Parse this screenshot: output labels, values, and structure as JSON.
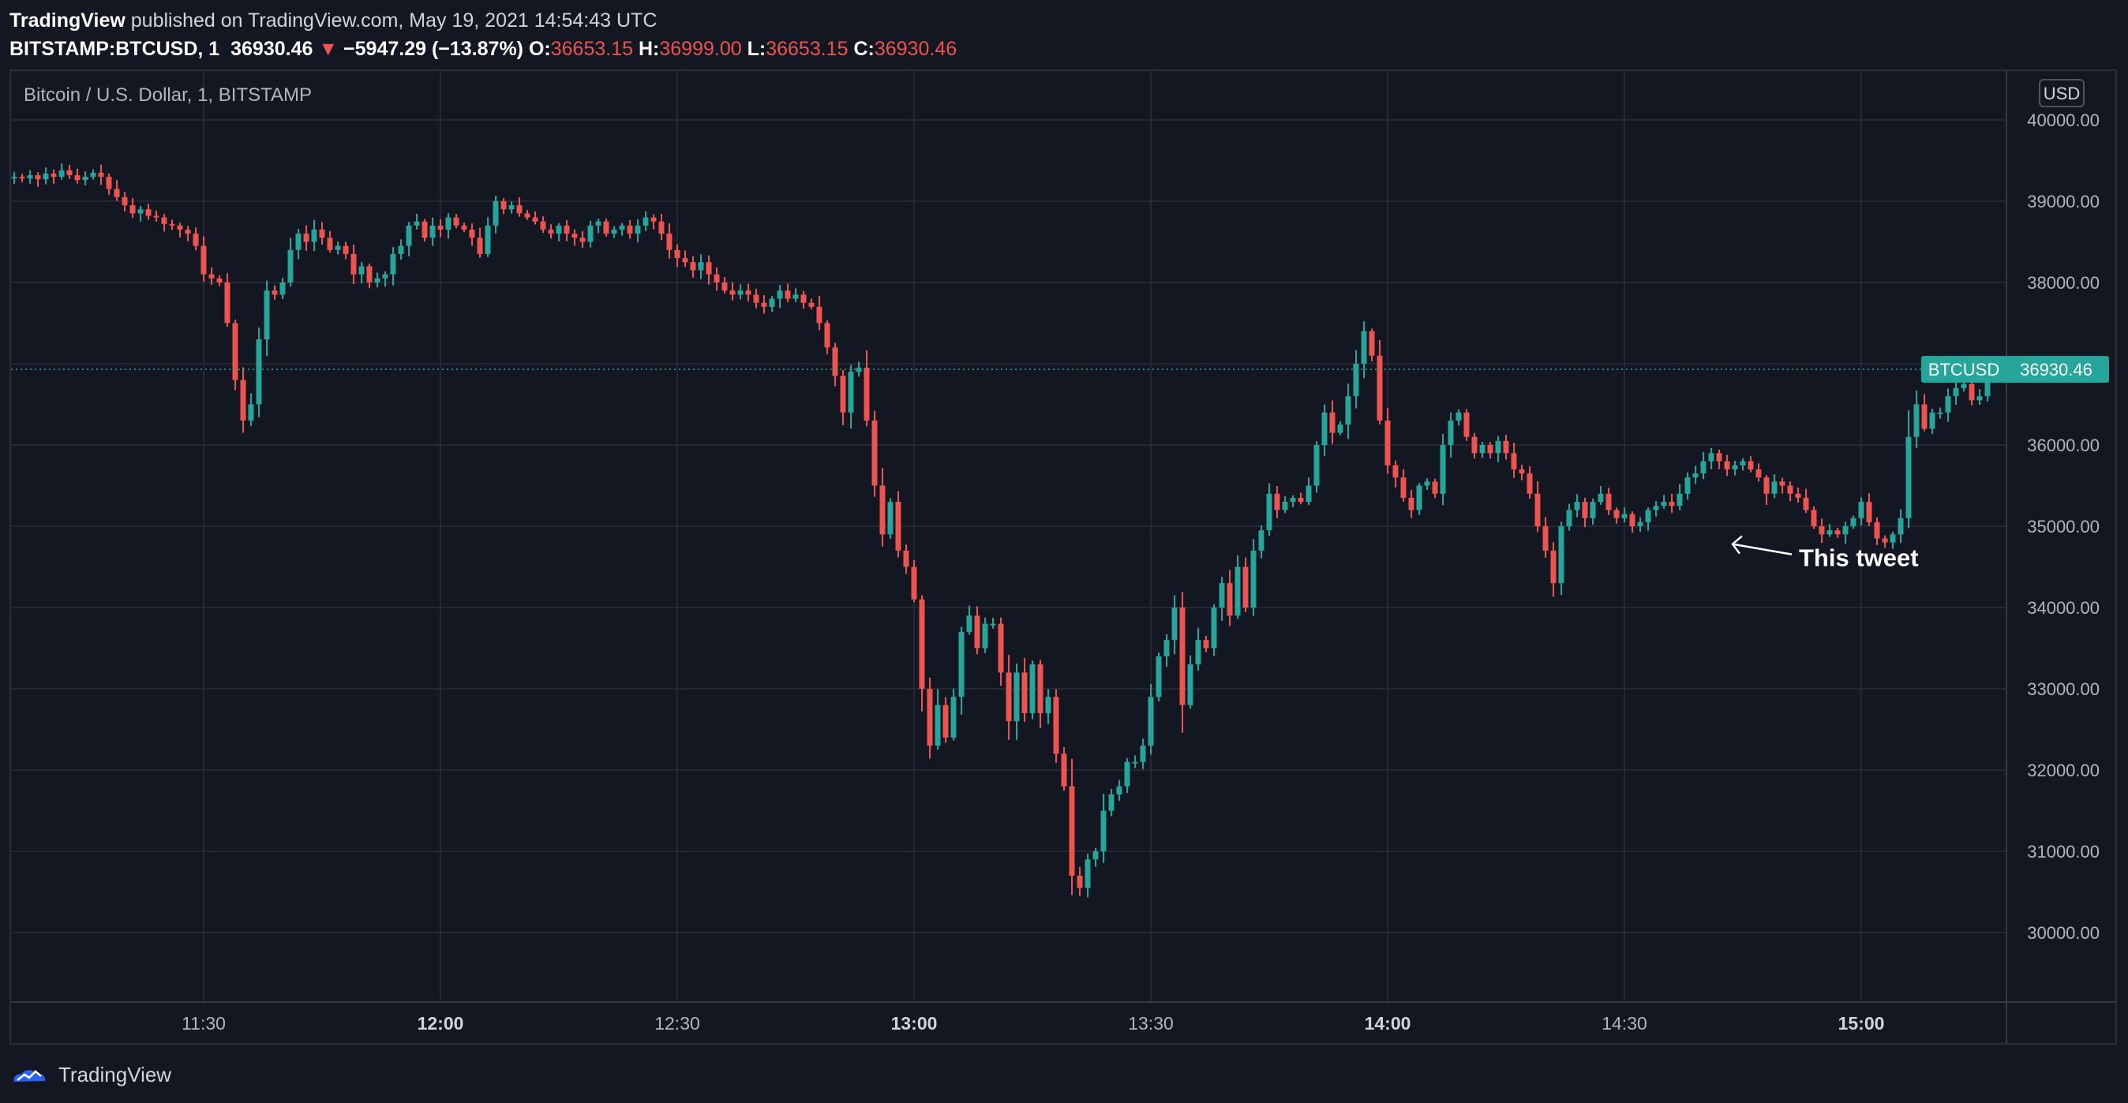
{
  "header": {
    "publisher": "TradingView",
    "published_text": "published on TradingView.com, May 19, 2021 14:54:43 UTC",
    "symbol": "BITSTAMP:BTCUSD, 1",
    "last": "36930.46",
    "change_arrow": "▼",
    "change": "−5947.29 (−13.87%)",
    "o_label": "O:",
    "o_value": "36653.15",
    "h_label": "H:",
    "h_value": "36999.00",
    "l_label": "L:",
    "l_value": "36653.15",
    "c_label": "C:",
    "c_value": "36930.46"
  },
  "chart_data": {
    "type": "candlestick",
    "title": "Bitcoin / U.S. Dollar, 1, BITSTAMP",
    "currency": "USD",
    "price_label_symbol": "BTCUSD",
    "price_label_value": "36930.46",
    "last_price": 36930.46,
    "y_ticks": [
      "40000.00",
      "39000.00",
      "38000.00",
      "37000.00",
      "36000.00",
      "35000.00",
      "34000.00",
      "33000.00",
      "32000.00",
      "31000.00",
      "30000.00"
    ],
    "x_ticks": [
      "11:30",
      "12:00",
      "12:30",
      "13:00",
      "13:30",
      "14:00",
      "14:30",
      "15:00"
    ],
    "x_ticks_bold": [
      "12:00",
      "13:00",
      "14:00",
      "15:00"
    ],
    "ylim": [
      29100,
      40500
    ],
    "xlim": [
      "11:06",
      "15:19"
    ],
    "grid": true,
    "annotation": {
      "text": "This tweet",
      "time": "14:43",
      "price": 34800
    },
    "colors": {
      "up": "#26a69a",
      "down": "#ef5350",
      "grid": "#2a2e39",
      "background": "#131722"
    },
    "candles_close": [
      39300,
      39280,
      39320,
      39270,
      39340,
      39300,
      39380,
      39320,
      39260,
      39300,
      39350,
      39300,
      39150,
      39050,
      38950,
      38850,
      38900,
      38820,
      38800,
      38720,
      38700,
      38650,
      38600,
      38450,
      38100,
      38050,
      38000,
      37500,
      36800,
      36300,
      36500,
      37300,
      37900,
      37850,
      38000,
      38400,
      38600,
      38500,
      38650,
      38550,
      38400,
      38450,
      38350,
      38100,
      38200,
      38000,
      38050,
      38100,
      38350,
      38450,
      38700,
      38750,
      38550,
      38700,
      38650,
      38800,
      38700,
      38650,
      38550,
      38350,
      38700,
      39000,
      38900,
      38950,
      38850,
      38800,
      38750,
      38650,
      38600,
      38700,
      38600,
      38550,
      38500,
      38700,
      38750,
      38600,
      38650,
      38700,
      38600,
      38700,
      38800,
      38750,
      38600,
      38400,
      38300,
      38250,
      38150,
      38250,
      38100,
      38000,
      37900,
      37850,
      37900,
      37850,
      37750,
      37700,
      37800,
      37900,
      37800,
      37850,
      37750,
      37700,
      37500,
      37200,
      36850,
      36400,
      36900,
      36950,
      36300,
      35500,
      34900,
      35300,
      34700,
      34500,
      34100,
      33000,
      32300,
      32800,
      32400,
      32900,
      33700,
      33900,
      33500,
      33800,
      33800,
      33200,
      32600,
      33200,
      32700,
      33300,
      32700,
      32900,
      32200,
      31800,
      30700,
      30550,
      30900,
      31000,
      31500,
      31700,
      31800,
      32100,
      32100,
      32300,
      32900,
      33400,
      33600,
      34000,
      32800,
      33300,
      33600,
      33500,
      34000,
      34300,
      33900,
      34500,
      34000,
      34700,
      34950,
      35400,
      35200,
      35300,
      35350,
      35300,
      35500,
      36000,
      36400,
      36150,
      36250,
      36600,
      37000,
      37400,
      37100,
      36300,
      35750,
      35600,
      35350,
      35200,
      35500,
      35550,
      35400,
      36000,
      36300,
      36400,
      36100,
      35900,
      36000,
      35900,
      36050,
      35900,
      35700,
      35650,
      35400,
      35000,
      34700,
      34300,
      35000,
      35200,
      35300,
      35100,
      35300,
      35400,
      35200,
      35100,
      35150,
      35000,
      35050,
      35200,
      35250,
      35300,
      35250,
      35400,
      35600,
      35650,
      35800,
      35900,
      35800,
      35700,
      35750,
      35800,
      35700,
      35600,
      35400,
      35550,
      35500,
      35400,
      35350,
      35200,
      35000,
      34900,
      34950,
      34900,
      35000,
      35100,
      35300,
      35050,
      34850,
      34800,
      34900,
      35100,
      36100,
      36500,
      36200,
      36400,
      36400,
      36600,
      36700,
      36750,
      36550,
      36600,
      36930.46
    ]
  }
}
